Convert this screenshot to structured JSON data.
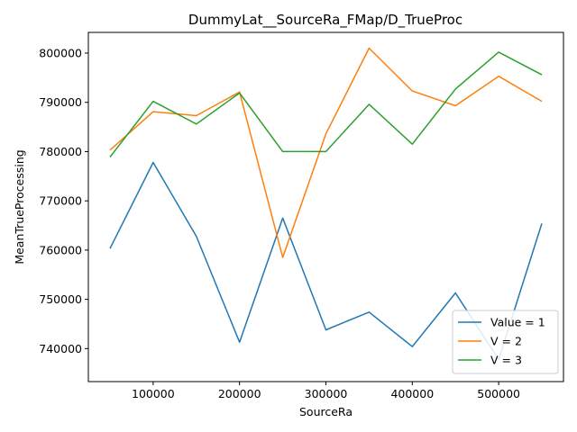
{
  "chart_data": {
    "type": "line",
    "title": "DummyLat__SourceRa_FMap/D_TrueProc",
    "xlabel": "SourceRa",
    "ylabel": "MeanTrueProcessing",
    "x": [
      50000,
      100000,
      150000,
      200000,
      250000,
      300000,
      350000,
      400000,
      450000,
      500000,
      550000
    ],
    "xlim": [
      25000,
      575000
    ],
    "ylim": [
      733300,
      804200
    ],
    "xticks": [
      100000,
      200000,
      300000,
      400000,
      500000
    ],
    "yticks": [
      740000,
      750000,
      760000,
      770000,
      780000,
      790000,
      800000
    ],
    "grid": false,
    "legend_position": "lower-right",
    "series": [
      {
        "name": "Value = 1",
        "color": "#1f77b4",
        "values": [
          760300,
          777800,
          762800,
          741300,
          766500,
          743800,
          747400,
          740400,
          751300,
          737800,
          765400
        ]
      },
      {
        "name": "V = 2",
        "color": "#ff7f0e",
        "values": [
          780300,
          788100,
          787300,
          792100,
          758500,
          783600,
          801000,
          792300,
          789300,
          795300,
          790200
        ]
      },
      {
        "name": "V = 3",
        "color": "#2ca02c",
        "values": [
          778900,
          790200,
          785600,
          791900,
          780000,
          780000,
          789600,
          781500,
          792700,
          800200,
          795600
        ]
      }
    ]
  }
}
